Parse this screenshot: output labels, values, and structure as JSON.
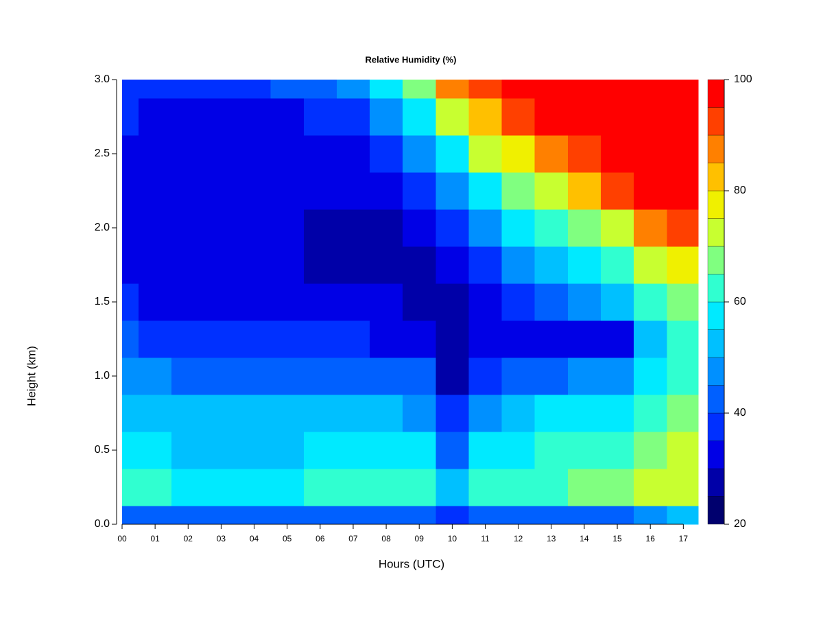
{
  "chart_data": {
    "type": "contour",
    "title": "Relative Humidity (%)",
    "x_label": "Hours (UTC)",
    "y_label": "Height (km)",
    "x": [
      0,
      1,
      2,
      3,
      4,
      5,
      6,
      7,
      8,
      9,
      10,
      11,
      12,
      13,
      14,
      15,
      16,
      17
    ],
    "y": [
      0,
      0.25,
      0.5,
      0.75,
      1,
      1.25,
      1.5,
      1.75,
      2,
      2.25,
      2.5,
      2.75,
      3
    ],
    "z": [
      [
        42,
        42,
        42,
        42,
        42,
        42,
        42,
        42,
        42,
        42,
        35,
        42,
        42,
        42,
        42,
        42,
        45,
        50
      ],
      [
        60,
        60,
        58,
        58,
        58,
        58,
        60,
        60,
        62,
        62,
        52,
        60,
        62,
        64,
        66,
        68,
        70,
        74
      ],
      [
        55,
        55,
        53,
        53,
        53,
        54,
        55,
        55,
        55,
        55,
        42,
        55,
        58,
        60,
        62,
        64,
        66,
        70
      ],
      [
        50,
        50,
        50,
        50,
        50,
        50,
        50,
        50,
        50,
        48,
        35,
        48,
        52,
        55,
        57,
        58,
        62,
        66
      ],
      [
        45,
        45,
        44,
        43,
        43,
        43,
        43,
        44,
        42,
        40,
        27,
        36,
        40,
        42,
        45,
        48,
        55,
        60
      ],
      [
        40,
        38,
        38,
        37,
        37,
        36,
        36,
        36,
        34,
        32,
        26,
        30,
        30,
        31,
        32,
        33,
        52,
        60
      ],
      [
        35,
        34,
        33,
        33,
        32,
        32,
        31,
        31,
        30,
        29,
        27,
        32,
        36,
        40,
        45,
        50,
        60,
        68
      ],
      [
        33,
        32,
        31,
        30,
        30,
        30,
        29,
        29,
        28,
        28,
        30,
        38,
        45,
        50,
        56,
        62,
        70,
        76
      ],
      [
        33,
        32,
        31,
        30,
        30,
        30,
        29,
        29,
        29,
        30,
        36,
        48,
        55,
        60,
        68,
        74,
        85,
        92
      ],
      [
        33,
        32,
        31,
        30,
        30,
        30,
        30,
        30,
        32,
        36,
        46,
        58,
        66,
        72,
        82,
        90,
        97,
        100
      ],
      [
        34,
        33,
        32,
        31,
        31,
        32,
        33,
        34,
        38,
        45,
        58,
        70,
        78,
        86,
        94,
        100,
        100,
        100
      ],
      [
        35,
        34,
        33,
        33,
        33,
        34,
        36,
        38,
        45,
        55,
        70,
        82,
        90,
        96,
        100,
        100,
        100,
        100
      ],
      [
        36,
        36,
        35,
        36,
        38,
        40,
        42,
        46,
        55,
        66,
        85,
        92,
        96,
        100,
        100,
        100,
        100,
        100
      ]
    ],
    "xlim": [
      0,
      17.45
    ],
    "ylim": [
      0,
      3
    ],
    "xticks": [
      {
        "value": 0,
        "label": "00"
      },
      {
        "value": 1,
        "label": "01"
      },
      {
        "value": 2,
        "label": "02"
      },
      {
        "value": 3,
        "label": "03"
      },
      {
        "value": 4,
        "label": "04"
      },
      {
        "value": 5,
        "label": "05"
      },
      {
        "value": 6,
        "label": "06"
      },
      {
        "value": 7,
        "label": "07"
      },
      {
        "value": 8,
        "label": "08"
      },
      {
        "value": 9,
        "label": "09"
      },
      {
        "value": 10,
        "label": "10"
      },
      {
        "value": 11,
        "label": "11"
      },
      {
        "value": 12,
        "label": "12"
      },
      {
        "value": 13,
        "label": "13"
      },
      {
        "value": 14,
        "label": "14"
      },
      {
        "value": 15,
        "label": "15"
      },
      {
        "value": 16,
        "label": "16"
      },
      {
        "value": 17,
        "label": "17"
      }
    ],
    "yticks": [
      {
        "value": 0,
        "label": "0.0"
      },
      {
        "value": 0.5,
        "label": "0.5"
      },
      {
        "value": 1,
        "label": "1.0"
      },
      {
        "value": 1.5,
        "label": "1.5"
      },
      {
        "value": 2,
        "label": "2.0"
      },
      {
        "value": 2.5,
        "label": "2.5"
      },
      {
        "value": 3,
        "label": "3.0"
      }
    ],
    "colorbar": {
      "levels": [
        20,
        25,
        30,
        35,
        40,
        45,
        50,
        55,
        60,
        65,
        70,
        75,
        80,
        85,
        90,
        95,
        100
      ],
      "colors": [
        "#00006e",
        "#0000a8",
        "#0000e6",
        "#0030ff",
        "#0060ff",
        "#0090ff",
        "#00c0ff",
        "#00eaff",
        "#30ffd0",
        "#80ff80",
        "#c8ff30",
        "#f0f000",
        "#ffc000",
        "#ff8000",
        "#ff4000",
        "#ff0000",
        "#c00000",
        "#800000"
      ],
      "ticks": [
        20,
        40,
        60,
        80,
        100
      ]
    }
  }
}
